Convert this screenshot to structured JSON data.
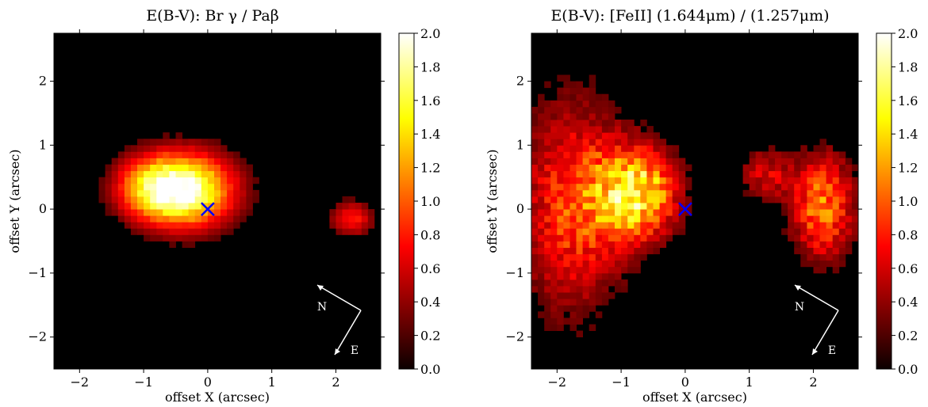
{
  "chart_data": [
    {
      "type": "heatmap",
      "title": "E(B-V): Br γ / Paβ",
      "xlabel": "offset X (arcsec)",
      "ylabel": "offset Y (arcsec)",
      "xlim": [
        -2.4,
        2.7
      ],
      "ylim": [
        -2.5,
        2.75
      ],
      "xticks": [
        -2,
        -1,
        0,
        1,
        2
      ],
      "yticks": [
        -2,
        -1,
        0,
        1,
        2
      ],
      "xticklabels": [
        "−2",
        "−1",
        "0",
        "1",
        "2"
      ],
      "yticklabels": [
        "−2",
        "−1",
        "0",
        "1",
        "2"
      ],
      "colorbar": {
        "colormap": "hot",
        "range": [
          0.0,
          2.0
        ],
        "ticks": [
          "0.0",
          "0.2",
          "0.4",
          "0.6",
          "0.8",
          "1.0",
          "1.2",
          "1.4",
          "1.6",
          "1.8",
          "2.0"
        ]
      },
      "background_value": 0.0,
      "marker": {
        "symbol": "x",
        "x": 0,
        "y": 0,
        "color": "#0000ff"
      },
      "compass": {
        "labels": [
          "N",
          "E"
        ],
        "arrow_color": "#ffffff"
      },
      "emission_components": [
        {
          "x": -0.4,
          "y": 0.25,
          "sigma_x": 0.55,
          "sigma_y": 0.42,
          "peak": 1.9
        },
        {
          "x": -1.0,
          "y": 0.3,
          "sigma_x": 0.4,
          "sigma_y": 0.35,
          "peak": 0.7
        },
        {
          "x": 2.2,
          "y": -0.2,
          "sigma_x": 0.25,
          "sigma_y": 0.2,
          "peak": 0.8
        }
      ]
    },
    {
      "type": "heatmap",
      "title": "E(B-V): [FeII] (1.644μm) / (1.257μm)",
      "xlabel": "offset X (arcsec)",
      "ylabel": "offset Y (arcsec)",
      "xlim": [
        -2.4,
        2.7
      ],
      "ylim": [
        -2.5,
        2.75
      ],
      "xticks": [
        -2,
        -1,
        0,
        1,
        2
      ],
      "yticks": [
        -2,
        -1,
        0,
        1,
        2
      ],
      "xticklabels": [
        "−2",
        "−1",
        "0",
        "1",
        "2"
      ],
      "yticklabels": [
        "−2",
        "−1",
        "0",
        "1",
        "2"
      ],
      "colorbar": {
        "colormap": "hot",
        "range": [
          0.0,
          2.0
        ],
        "ticks": [
          "0.0",
          "0.2",
          "0.4",
          "0.6",
          "0.8",
          "1.0",
          "1.2",
          "1.4",
          "1.6",
          "1.8",
          "2.0"
        ]
      },
      "background_value": 0.0,
      "marker": {
        "symbol": "x",
        "x": 0,
        "y": 0,
        "color": "#0000ff"
      },
      "compass": {
        "labels": [
          "N",
          "E"
        ],
        "arrow_color": "#ffffff"
      },
      "emission_components": [
        {
          "x": -0.8,
          "y": 0.2,
          "sigma_x": 0.45,
          "sigma_y": 0.5,
          "peak": 1.5
        },
        {
          "x": -1.8,
          "y": 0.0,
          "sigma_x": 0.6,
          "sigma_y": 1.2,
          "peak": 0.9
        },
        {
          "x": 2.1,
          "y": 0.0,
          "sigma_x": 0.35,
          "sigma_y": 0.6,
          "peak": 1.1
        },
        {
          "x": 1.2,
          "y": 0.5,
          "sigma_x": 0.3,
          "sigma_y": 0.3,
          "peak": 0.6
        }
      ]
    }
  ]
}
